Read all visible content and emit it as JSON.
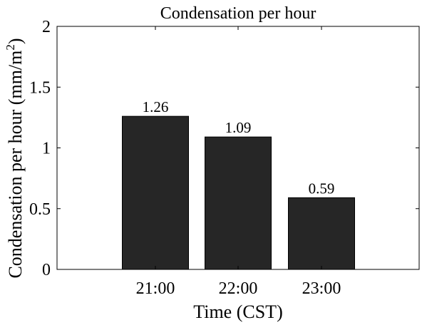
{
  "chart_data": {
    "type": "bar",
    "title": "Condensation per hour",
    "xlabel": "Time (CST)",
    "ylabel_main": "Condensation per hour (mm/m",
    "ylabel_sup": "2",
    "ylabel_end": ")",
    "categories": [
      "21:00",
      "22:00",
      "23:00"
    ],
    "values": [
      1.26,
      1.09,
      0.59
    ],
    "value_labels": [
      "1.26",
      "1.09",
      "0.59"
    ],
    "ylim": [
      0,
      2
    ],
    "yticks": [
      0,
      0.5,
      1,
      1.5,
      2
    ],
    "ytick_labels": [
      "0",
      "0.5",
      "1",
      "1.5",
      "2"
    ],
    "bar_color": "#262626",
    "grid": false,
    "legend": "none"
  }
}
